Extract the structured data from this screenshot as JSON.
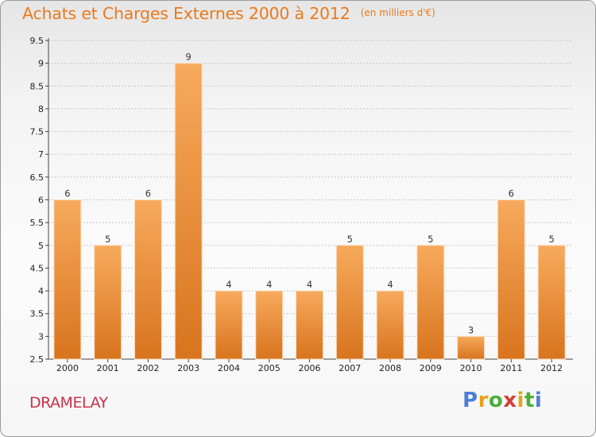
{
  "title": "Achats et Charges Externes 2000 à 2012",
  "unit": "(en milliers d'€)",
  "place": "DRAMELAY",
  "brand": {
    "text": "Proxiti",
    "letters": [
      "P",
      "r",
      "o",
      "x",
      "i",
      "t",
      "i"
    ],
    "colors": [
      "#4a7fd6",
      "#e8a21a",
      "#4cae3a",
      "#d64038",
      "#e8a21a",
      "#4cae3a",
      "#4a7fd6"
    ]
  },
  "colors": {
    "bar_light": "#f7aa5c",
    "bar_dark": "#d8741e",
    "title": "#ea7a1c",
    "place": "#c9324c",
    "grid": "#c8c8c8"
  },
  "chart_data": {
    "type": "bar",
    "title": "Achats et Charges Externes 2000 à 2012",
    "subtitle": "(en milliers d'€)",
    "xlabel": "",
    "ylabel": "",
    "categories": [
      "2000",
      "2001",
      "2002",
      "2003",
      "2004",
      "2005",
      "2006",
      "2007",
      "2008",
      "2009",
      "2010",
      "2011",
      "2012"
    ],
    "values": [
      6,
      5,
      6,
      9,
      4,
      4,
      4,
      5,
      4,
      5,
      3,
      6,
      5
    ],
    "data_labels": [
      "6",
      "5",
      "6",
      "9",
      "4",
      "4",
      "4",
      "5",
      "4",
      "5",
      "3",
      "6",
      "5"
    ],
    "ylim": [
      2.5,
      9.5
    ],
    "yticks": [
      2.5,
      3,
      3.5,
      4,
      4.5,
      5,
      5.5,
      6,
      6.5,
      7,
      7.5,
      8,
      8.5,
      9,
      9.5
    ],
    "ytick_labels": [
      "2.5",
      "3",
      "3.5",
      "4",
      "4.5",
      "5",
      "5.5",
      "6",
      "6.5",
      "7",
      "7.5",
      "8",
      "8.5",
      "9",
      "9.5"
    ],
    "grid": true,
    "legend": "none"
  }
}
